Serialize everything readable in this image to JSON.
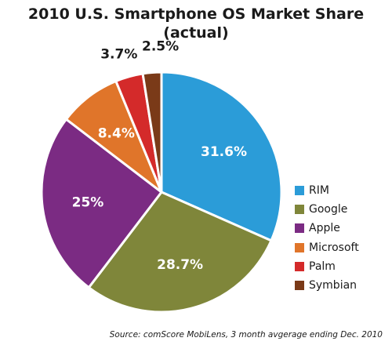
{
  "chart_data": {
    "type": "pie",
    "title_line1": "2010 U.S. Smartphone OS Market Share",
    "title_line2": "(actual)",
    "slices": [
      {
        "name": "RIM",
        "value": 31.6,
        "label": "31.6%",
        "color": "#2b9cd8",
        "label_color": "#ffffff",
        "label_inside": true
      },
      {
        "name": "Google",
        "value": 28.7,
        "label": "28.7%",
        "color": "#7f863a",
        "label_color": "#ffffff",
        "label_inside": true
      },
      {
        "name": "Apple",
        "value": 25,
        "label": "25%",
        "color": "#7b2b83",
        "label_color": "#ffffff",
        "label_inside": true
      },
      {
        "name": "Microsoft",
        "value": 8.4,
        "label": "8.4%",
        "color": "#e0752a",
        "label_color": "#ffffff",
        "label_inside": true
      },
      {
        "name": "Palm",
        "value": 3.7,
        "label": "3.7%",
        "color": "#d42a2a",
        "label_color": "#1a1a1a",
        "label_inside": false
      },
      {
        "name": "Symbian",
        "value": 2.5,
        "label": "2.5%",
        "color": "#7a3a18",
        "label_color": "#1a1a1a",
        "label_inside": false
      }
    ],
    "legend_position": "right",
    "start": "12 o'clock",
    "direction": "clockwise"
  },
  "source": "Source: comScore MobiLens, 3 month avgerage ending Dec. 2010"
}
